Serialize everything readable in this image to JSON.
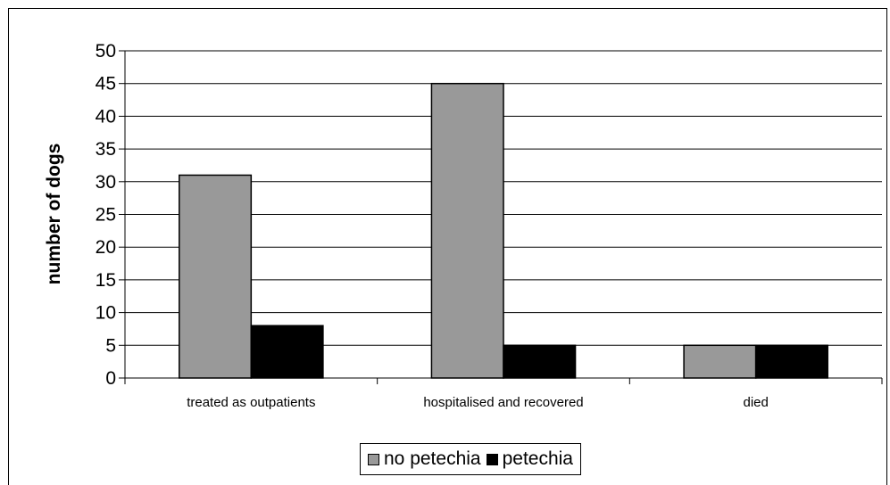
{
  "chart_data": {
    "type": "bar",
    "categories": [
      "treated as outpatients",
      "hospitalised and recovered",
      "died"
    ],
    "series": [
      {
        "name": "no petechia",
        "values": [
          31,
          45,
          5
        ],
        "color": "#999999"
      },
      {
        "name": "petechia",
        "values": [
          8,
          5,
          5
        ],
        "color": "#000000"
      }
    ],
    "ylabel": "number of dogs",
    "xlabel": "",
    "ylim": [
      0,
      50
    ],
    "yticks": [
      "0",
      "5",
      "10",
      "15",
      "20",
      "25",
      "30",
      "35",
      "40",
      "45",
      "50"
    ],
    "grid": true,
    "legend_position": "bottom"
  }
}
